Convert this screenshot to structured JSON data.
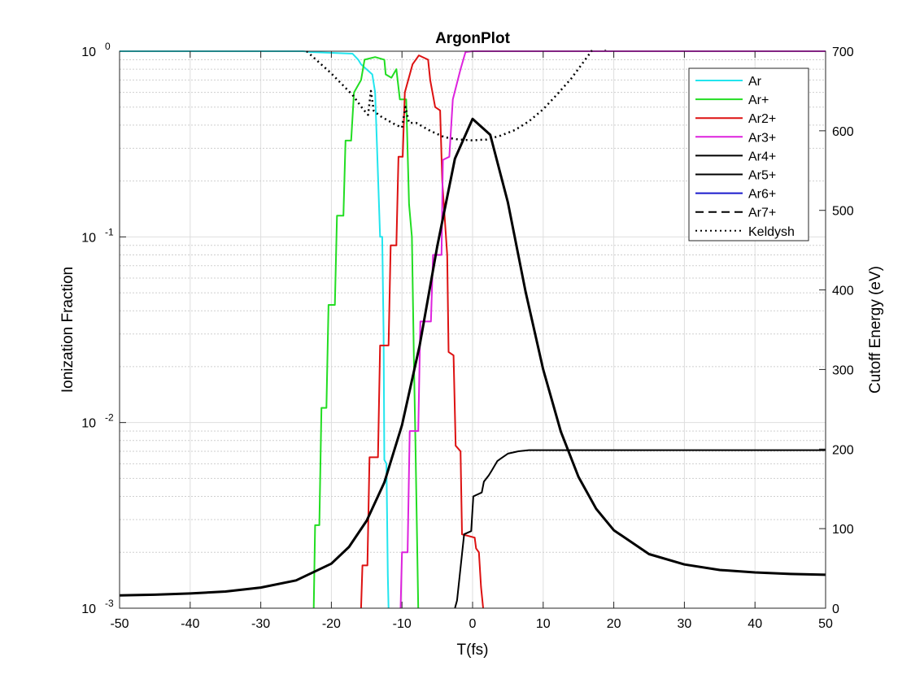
{
  "chart_data": {
    "type": "line",
    "title": "ArgonPlot",
    "xlabel": "T(fs)",
    "ylabel": "Ionization Fraction",
    "y2label": "Cutoff Energy (eV)",
    "xlim": [
      -50,
      50
    ],
    "ylim": [
      0.001,
      1
    ],
    "y2lim": [
      0,
      700
    ],
    "y_scale": "log",
    "grid": true,
    "minor_grid": true,
    "legend_position": "top-right",
    "x_ticks": [
      "-50",
      "-40",
      "-30",
      "-20",
      "-10",
      "0",
      "10",
      "20",
      "30",
      "40",
      "50"
    ],
    "x_tick_values": [
      -50,
      -40,
      -30,
      -20,
      -10,
      0,
      10,
      20,
      30,
      40,
      50
    ],
    "y_ticks": [
      {
        "base": "10",
        "exp": "-3",
        "value": 0.001
      },
      {
        "base": "10",
        "exp": "-2",
        "value": 0.01
      },
      {
        "base": "10",
        "exp": "-1",
        "value": 0.1
      },
      {
        "base": "10",
        "exp": "0",
        "value": 1
      }
    ],
    "y2_ticks": [
      "0",
      "100",
      "200",
      "300",
      "400",
      "500",
      "600",
      "700"
    ],
    "y2_tick_values": [
      0,
      100,
      200,
      300,
      400,
      500,
      600,
      700
    ],
    "series": [
      {
        "name": "Ar",
        "color": "#22e5ee",
        "dash": "solid",
        "axis": "left",
        "points": [
          [
            -50,
            1
          ],
          [
            -24,
            1
          ],
          [
            -23,
            0.99
          ],
          [
            -17,
            0.97
          ],
          [
            -16.2,
            0.9
          ],
          [
            -15.8,
            0.85
          ],
          [
            -14.2,
            0.75
          ],
          [
            -13.8,
            0.6
          ],
          [
            -13.5,
            0.28
          ],
          [
            -13.1,
            0.1
          ],
          [
            -12.8,
            0.1
          ],
          [
            -12.6,
            0.03
          ],
          [
            -12.5,
            0.0063
          ],
          [
            -12.2,
            0.006
          ],
          [
            -12,
            0.0015
          ],
          [
            -11.9,
            0.001
          ]
        ]
      },
      {
        "name": "Ar+",
        "color": "#22dd22",
        "dash": "solid",
        "axis": "left",
        "points": [
          [
            -22.5,
            0.001
          ],
          [
            -22.3,
            0.0028
          ],
          [
            -21.7,
            0.0028
          ],
          [
            -21.4,
            0.012
          ],
          [
            -20.7,
            0.012
          ],
          [
            -20.4,
            0.043
          ],
          [
            -19.5,
            0.043
          ],
          [
            -19.2,
            0.13
          ],
          [
            -18.3,
            0.13
          ],
          [
            -18,
            0.33
          ],
          [
            -17.2,
            0.33
          ],
          [
            -16.8,
            0.6
          ],
          [
            -15.8,
            0.7
          ],
          [
            -15.3,
            0.9
          ],
          [
            -13.8,
            0.93
          ],
          [
            -12.5,
            0.9
          ],
          [
            -12.3,
            0.75
          ],
          [
            -11.5,
            0.72
          ],
          [
            -10.8,
            0.8
          ],
          [
            -10.3,
            0.55
          ],
          [
            -9.4,
            0.55
          ],
          [
            -9,
            0.15
          ],
          [
            -8.6,
            0.1
          ],
          [
            -8.3,
            0.02
          ],
          [
            -8.1,
            0.008
          ],
          [
            -7.7,
            0.001
          ]
        ]
      },
      {
        "name": "Ar2+",
        "color": "#dd1111",
        "dash": "solid",
        "axis": "left",
        "points": [
          [
            -15.8,
            0.001
          ],
          [
            -15.6,
            0.0017
          ],
          [
            -14.9,
            0.0017
          ],
          [
            -14.6,
            0.0065
          ],
          [
            -13.4,
            0.0065
          ],
          [
            -13.1,
            0.026
          ],
          [
            -11.9,
            0.026
          ],
          [
            -11.6,
            0.09
          ],
          [
            -10.8,
            0.09
          ],
          [
            -10.5,
            0.27
          ],
          [
            -9.9,
            0.27
          ],
          [
            -9.6,
            0.6
          ],
          [
            -8.5,
            0.85
          ],
          [
            -7.6,
            0.95
          ],
          [
            -6.3,
            0.9
          ],
          [
            -6,
            0.7
          ],
          [
            -5.3,
            0.5
          ],
          [
            -4.6,
            0.48
          ],
          [
            -4.3,
            0.2
          ],
          [
            -3.6,
            0.08
          ],
          [
            -3.4,
            0.024
          ],
          [
            -2.7,
            0.023
          ],
          [
            -2.4,
            0.0075
          ],
          [
            -1.7,
            0.007
          ],
          [
            -1.5,
            0.0025
          ],
          [
            0.3,
            0.0024
          ],
          [
            0.5,
            0.0021
          ],
          [
            0.9,
            0.002
          ],
          [
            1.2,
            0.0013
          ],
          [
            1.5,
            0.001
          ]
        ]
      },
      {
        "name": "Ar3+",
        "color": "#dd22dd",
        "dash": "solid",
        "axis": "left",
        "points": [
          [
            -10.2,
            0.001
          ],
          [
            -10,
            0.002
          ],
          [
            -9.2,
            0.002
          ],
          [
            -8.9,
            0.009
          ],
          [
            -7.7,
            0.009
          ],
          [
            -7.4,
            0.035
          ],
          [
            -5.9,
            0.035
          ],
          [
            -5.6,
            0.08
          ],
          [
            -4.4,
            0.08
          ],
          [
            -4.2,
            0.26
          ],
          [
            -3.3,
            0.27
          ],
          [
            -2.8,
            0.55
          ],
          [
            -1.7,
            0.8
          ],
          [
            -1,
            0.99
          ],
          [
            0,
            1
          ],
          [
            50,
            1
          ]
        ]
      },
      {
        "name": "Ar4+",
        "color": "#000000",
        "dash": "solid",
        "axis": "left",
        "points": [
          [
            -2.5,
            0.001
          ],
          [
            -2.2,
            0.0011
          ],
          [
            -1.2,
            0.0025
          ],
          [
            -0.2,
            0.0026
          ],
          [
            0.1,
            0.004
          ],
          [
            1.3,
            0.0042
          ],
          [
            1.6,
            0.0048
          ],
          [
            2.3,
            0.0052
          ],
          [
            2.7,
            0.0055
          ],
          [
            3.5,
            0.0062
          ],
          [
            4,
            0.0064
          ],
          [
            5,
            0.0068
          ],
          [
            6.5,
            0.007
          ],
          [
            8,
            0.0071
          ],
          [
            50,
            0.0071
          ]
        ]
      },
      {
        "name": "Ar5+",
        "color": "#000000",
        "dash": "solid",
        "axis": "right",
        "x": [
          -50,
          -45,
          -40,
          -35,
          -30,
          -25,
          -20,
          -17.5,
          -15,
          -12.5,
          -10,
          -7.5,
          -5,
          -2.5,
          0,
          2.5,
          5,
          7.5,
          10,
          12.5,
          15,
          17.5,
          20,
          25,
          30,
          35,
          40,
          45,
          50
        ],
        "y": [
          16,
          17,
          18.5,
          21,
          26,
          35,
          56,
          77,
          110,
          158,
          230,
          330,
          455,
          565,
          615,
          595,
          510,
          398,
          300,
          222,
          165,
          125,
          98,
          68,
          55,
          48,
          45,
          43,
          42
        ]
      },
      {
        "name": "Ar6+",
        "color": "#1a1acc",
        "dash": "solid",
        "axis": "left",
        "points": []
      },
      {
        "name": "Ar7+",
        "color": "#000000",
        "dash": "dashed",
        "axis": "left",
        "points": []
      },
      {
        "name": "Keldysh",
        "color": "#000000",
        "dash": "dotted",
        "axis": "right",
        "x": [
          -23.5,
          -20,
          -17,
          -15.5,
          -14.8,
          -14.4,
          -14,
          -13,
          -11,
          -10,
          -9.5,
          -9,
          -8,
          -6,
          -4,
          -2,
          0,
          2,
          4,
          6,
          8,
          10,
          12,
          14,
          16,
          18,
          19
        ],
        "y": [
          700,
          672,
          645,
          627,
          620,
          650,
          625,
          618,
          608,
          604,
          630,
          610,
          610,
          600,
          592,
          589,
          588,
          589,
          594,
          601,
          612,
          627,
          646,
          666,
          690,
          714,
          700
        ]
      }
    ]
  }
}
